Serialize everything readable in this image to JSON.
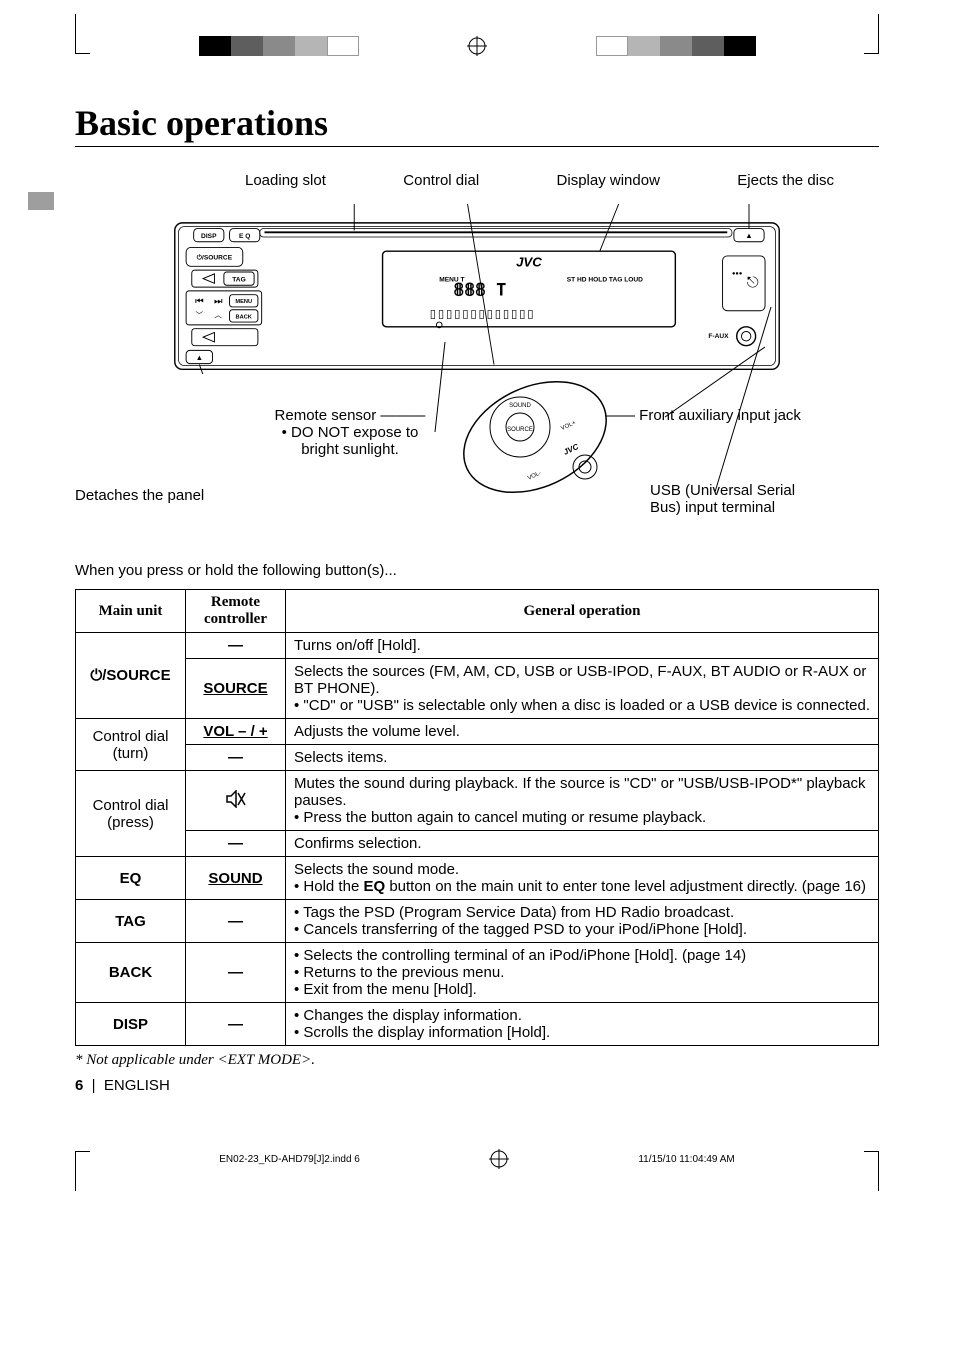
{
  "title": "Basic operations",
  "diagram_labels": {
    "loading_slot": "Loading slot",
    "control_dial": "Control dial",
    "display_window": "Display window",
    "ejects": "Ejects the disc",
    "detaches_panel": "Detaches the panel",
    "remote_sensor": "Remote sensor",
    "remote_sensor_note": "• DO NOT expose to bright sunlight.",
    "front_aux": "Front auxiliary input jack",
    "usb_terminal": "USB (Universal Serial Bus) input terminal"
  },
  "device_buttons": {
    "disp": "DISP",
    "eq": "E Q",
    "source": "/SOURCE",
    "tag": "TAG",
    "menu": "MENU",
    "back": "BACK",
    "brand": "JVC",
    "display_text": "ST HD HOLD TAG LOUD",
    "faux": "F-AUX"
  },
  "intro": "When you press or hold the following button(s)...",
  "table": {
    "headers": {
      "main": "Main unit",
      "remote": "Remote controller",
      "general": "General operation"
    },
    "rows": [
      {
        "main": "⏻/SOURCE",
        "main_bold": true,
        "main_rowspan": 2,
        "remote": "—",
        "remote_bold": false,
        "general": "Turns on/off [Hold]."
      },
      {
        "remote": "SOURCE",
        "remote_bold": true,
        "remote_underline": true,
        "general": "Selects the sources (FM, AM, CD, USB or USB-IPOD, F-AUX, BT AUDIO or R-AUX or BT PHONE).\n• \"CD\" or \"USB\" is selectable only when a disc is loaded or a USB device is connected."
      },
      {
        "main": "Control dial (turn)",
        "main_rowspan": 2,
        "remote": "VOL – / +",
        "remote_bold": true,
        "remote_underline": true,
        "general": "Adjusts the volume level."
      },
      {
        "remote": "—",
        "general": "Selects items."
      },
      {
        "main": "Control dial (press)",
        "main_rowspan": 2,
        "remote": "mute-icon",
        "general": "Mutes the sound during playback. If the source is \"CD\" or \"USB/USB-IPOD*\" playback pauses.\n• Press the button again to cancel muting or resume playback."
      },
      {
        "remote": "—",
        "general": "Confirms selection."
      },
      {
        "main": "EQ",
        "main_bold": true,
        "remote": "SOUND",
        "remote_bold": true,
        "remote_underline": true,
        "general_html": "Selects the sound mode.<br>• Hold the <b>EQ</b> button on the main unit to enter tone level adjustment directly. (page 16)"
      },
      {
        "main": "TAG",
        "main_bold": true,
        "remote": "—",
        "general": "• Tags the PSD (Program Service Data) from HD Radio broadcast.\n• Cancels transferring of the tagged PSD to your iPod/iPhone [Hold]."
      },
      {
        "main": "BACK",
        "main_bold": true,
        "remote": "—",
        "general": "• Selects the controlling terminal of an iPod/iPhone [Hold]. (page 14)\n• Returns to the previous menu.\n• Exit from the menu [Hold]."
      },
      {
        "main": "DISP",
        "main_bold": true,
        "remote": "—",
        "general": "• Changes the display information.\n• Scrolls the display information [Hold]."
      }
    ]
  },
  "footnote": "* Not applicable under <EXT MODE>.",
  "page_number": "6",
  "lang": "ENGLISH",
  "footer": {
    "file": "EN02-23_KD-AHD79[J]2.indd   6",
    "timestamp": "11/15/10   11:04:49 AM"
  },
  "print_bars": [
    "#000000",
    "#5e5e5e",
    "#8a8a8a",
    "#b5b5b5",
    "#ffffff"
  ]
}
